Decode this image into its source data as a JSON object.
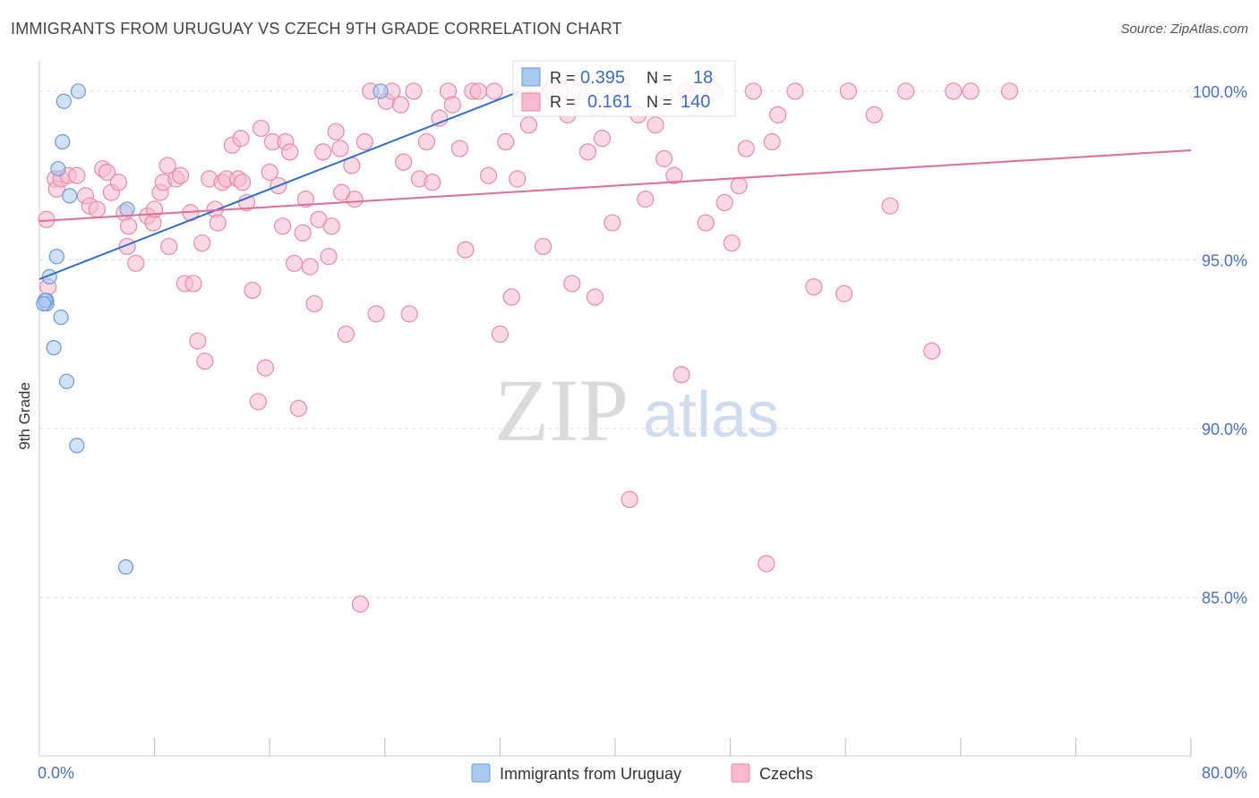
{
  "title": "IMMIGRANTS FROM URUGUAY VS CZECH 9TH GRADE CORRELATION CHART",
  "source": "Source: ZipAtlas.com",
  "watermark": {
    "zip": "ZIP",
    "atlas": "atlas"
  },
  "colors": {
    "uruguay_fill": "#a9c8f2",
    "uruguay_stroke": "#6d9ad8",
    "uruguay_line": "#2f6fcf",
    "czech_fill": "#f6b9cd",
    "czech_stroke": "#e98aa8",
    "czech_line": "#e06d96",
    "axis_label": "#4a72c0",
    "grid": "#dddddd"
  },
  "legend_top": {
    "uruguay": {
      "r_label": "R =",
      "r_value": "0.395",
      "n_label": "N =",
      "n_value": "18"
    },
    "czech": {
      "r_label": "R =",
      "r_value": "0.161",
      "n_label": "N =",
      "n_value": "140"
    }
  },
  "chart_data": {
    "type": "scatter",
    "title": "IMMIGRANTS FROM URUGUAY VS CZECH 9TH GRADE CORRELATION CHART",
    "xlabel": "",
    "ylabel": "9th Grade",
    "xlim": [
      0,
      80
    ],
    "ylim": [
      80.3,
      100.9
    ],
    "x_tick_labels": [
      {
        "value": 0,
        "label": "0.0%"
      },
      {
        "value": 80,
        "label": "80.0%"
      }
    ],
    "x_minor_ticks": [
      8,
      16,
      24,
      32,
      40,
      48,
      56,
      64,
      72,
      80
    ],
    "y_ticks": [
      {
        "value": 100,
        "label": "100.0%"
      },
      {
        "value": 95,
        "label": "95.0%"
      },
      {
        "value": 90,
        "label": "90.0%"
      },
      {
        "value": 85,
        "label": "85.0%"
      }
    ],
    "grid": true,
    "legend": "bottom-center",
    "series": [
      {
        "name": "Immigrants from Uruguay",
        "r": 0.395,
        "n": 18,
        "trend": {
          "x": [
            0,
            33.4
          ],
          "y": [
            94.43,
            100.0
          ]
        },
        "points": [
          [
            2.7,
            100.0
          ],
          [
            23.7,
            100.0
          ],
          [
            1.7,
            99.7
          ],
          [
            1.6,
            98.5
          ],
          [
            1.3,
            97.7
          ],
          [
            2.1,
            96.9
          ],
          [
            6.1,
            96.5
          ],
          [
            1.2,
            95.1
          ],
          [
            0.7,
            94.5
          ],
          [
            0.5,
            93.8
          ],
          [
            0.5,
            93.7
          ],
          [
            1.5,
            93.3
          ],
          [
            1.0,
            92.4
          ],
          [
            1.9,
            91.4
          ],
          [
            2.6,
            89.5
          ],
          [
            6.0,
            85.9
          ],
          [
            0.4,
            93.8
          ],
          [
            0.3,
            93.7
          ]
        ]
      },
      {
        "name": "Czechs",
        "r": 0.161,
        "n": 140,
        "trend": {
          "x": [
            0,
            80
          ],
          "y": [
            96.15,
            98.25
          ]
        },
        "points": [
          [
            0.5,
            96.2
          ],
          [
            0.6,
            94.2
          ],
          [
            1.1,
            97.4
          ],
          [
            1.2,
            97.1
          ],
          [
            1.5,
            97.4
          ],
          [
            2.0,
            97.5
          ],
          [
            2.6,
            97.5
          ],
          [
            3.2,
            96.9
          ],
          [
            3.5,
            96.6
          ],
          [
            4.0,
            96.5
          ],
          [
            4.4,
            97.7
          ],
          [
            4.7,
            97.6
          ],
          [
            5.0,
            97.0
          ],
          [
            5.5,
            97.3
          ],
          [
            5.9,
            96.4
          ],
          [
            6.1,
            95.4
          ],
          [
            6.2,
            96.0
          ],
          [
            6.7,
            94.9
          ],
          [
            7.5,
            96.3
          ],
          [
            7.9,
            96.1
          ],
          [
            8.4,
            97.0
          ],
          [
            8.6,
            97.3
          ],
          [
            8.9,
            97.8
          ],
          [
            9.0,
            95.4
          ],
          [
            9.5,
            97.4
          ],
          [
            9.8,
            97.5
          ],
          [
            10.1,
            94.3
          ],
          [
            10.5,
            96.4
          ],
          [
            10.7,
            94.3
          ],
          [
            11.0,
            92.6
          ],
          [
            11.3,
            95.5
          ],
          [
            11.5,
            92.0
          ],
          [
            11.8,
            97.4
          ],
          [
            12.2,
            96.5
          ],
          [
            12.4,
            96.1
          ],
          [
            12.7,
            97.3
          ],
          [
            13.0,
            97.4
          ],
          [
            13.4,
            98.4
          ],
          [
            13.8,
            97.4
          ],
          [
            14.0,
            98.6
          ],
          [
            14.4,
            96.7
          ],
          [
            14.8,
            94.1
          ],
          [
            15.2,
            90.8
          ],
          [
            15.4,
            98.9
          ],
          [
            15.7,
            91.8
          ],
          [
            16.0,
            97.6
          ],
          [
            16.2,
            98.5
          ],
          [
            16.6,
            97.2
          ],
          [
            16.9,
            96.0
          ],
          [
            17.1,
            98.5
          ],
          [
            17.4,
            98.2
          ],
          [
            17.7,
            94.9
          ],
          [
            18.0,
            90.6
          ],
          [
            18.3,
            95.8
          ],
          [
            18.5,
            96.8
          ],
          [
            18.8,
            94.8
          ],
          [
            19.1,
            93.7
          ],
          [
            19.4,
            96.2
          ],
          [
            19.7,
            98.2
          ],
          [
            20.1,
            95.1
          ],
          [
            20.3,
            96.0
          ],
          [
            20.6,
            98.8
          ],
          [
            20.9,
            98.3
          ],
          [
            21.3,
            92.8
          ],
          [
            21.7,
            97.8
          ],
          [
            21.9,
            96.8
          ],
          [
            22.3,
            84.8
          ],
          [
            22.6,
            98.5
          ],
          [
            23.0,
            100.0
          ],
          [
            23.4,
            93.4
          ],
          [
            24.1,
            99.7
          ],
          [
            24.5,
            100.0
          ],
          [
            25.1,
            99.6
          ],
          [
            25.3,
            97.9
          ],
          [
            25.7,
            93.4
          ],
          [
            26.0,
            100.0
          ],
          [
            26.4,
            97.4
          ],
          [
            26.9,
            98.5
          ],
          [
            27.3,
            97.3
          ],
          [
            27.8,
            99.2
          ],
          [
            28.4,
            100.0
          ],
          [
            28.7,
            99.6
          ],
          [
            29.2,
            98.3
          ],
          [
            29.6,
            95.3
          ],
          [
            30.1,
            100.0
          ],
          [
            30.5,
            100.0
          ],
          [
            31.2,
            97.5
          ],
          [
            31.6,
            100.0
          ],
          [
            32.0,
            92.8
          ],
          [
            32.4,
            98.5
          ],
          [
            32.8,
            93.9
          ],
          [
            33.2,
            97.4
          ],
          [
            33.6,
            100.0
          ],
          [
            34.0,
            99.0
          ],
          [
            35.0,
            95.4
          ],
          [
            35.5,
            100.0
          ],
          [
            36.2,
            100.0
          ],
          [
            36.7,
            99.3
          ],
          [
            37.0,
            94.3
          ],
          [
            37.5,
            100.0
          ],
          [
            38.1,
            98.2
          ],
          [
            38.6,
            93.9
          ],
          [
            39.1,
            98.6
          ],
          [
            39.8,
            96.1
          ],
          [
            40.5,
            100.0
          ],
          [
            41.0,
            87.9
          ],
          [
            41.6,
            99.3
          ],
          [
            42.1,
            96.8
          ],
          [
            42.8,
            99.0
          ],
          [
            43.4,
            98.0
          ],
          [
            44.1,
            97.5
          ],
          [
            44.6,
            91.6
          ],
          [
            44.9,
            100.0
          ],
          [
            45.5,
            99.5
          ],
          [
            46.3,
            96.1
          ],
          [
            46.9,
            100.0
          ],
          [
            47.6,
            96.7
          ],
          [
            48.1,
            95.5
          ],
          [
            48.6,
            97.2
          ],
          [
            49.1,
            98.3
          ],
          [
            49.6,
            100.0
          ],
          [
            50.5,
            86.0
          ],
          [
            50.9,
            98.5
          ],
          [
            51.3,
            99.3
          ],
          [
            52.5,
            100.0
          ],
          [
            53.8,
            94.2
          ],
          [
            55.9,
            94.0
          ],
          [
            56.2,
            100.0
          ],
          [
            58.0,
            99.3
          ],
          [
            59.1,
            96.6
          ],
          [
            60.2,
            100.0
          ],
          [
            62.0,
            92.3
          ],
          [
            63.5,
            100.0
          ],
          [
            64.7,
            100.0
          ],
          [
            67.4,
            100.0
          ],
          [
            21.0,
            97.0
          ],
          [
            8.0,
            96.5
          ],
          [
            14.1,
            97.3
          ],
          [
            38.8,
            99.5
          ],
          [
            45.1,
            99.8
          ]
        ]
      }
    ]
  },
  "legend_bottom": [
    {
      "label": "Immigrants from Uruguay"
    },
    {
      "label": "Czechs"
    }
  ]
}
